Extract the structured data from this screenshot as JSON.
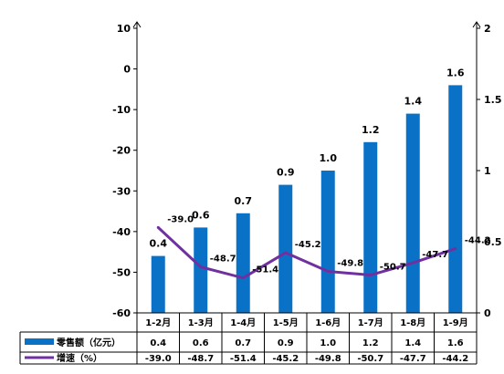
{
  "chart_data": {
    "type": "bar",
    "categories": [
      "1-2月",
      "1-3月",
      "1-4月",
      "1-5月",
      "1-6月",
      "1-7月",
      "1-8月",
      "1-9月"
    ],
    "series": [
      {
        "name": "零售额（亿元）",
        "type": "bar",
        "axis": "right",
        "color": "#0a72c6",
        "values": [
          0.4,
          0.6,
          0.7,
          0.9,
          1.0,
          1.2,
          1.4,
          1.6
        ],
        "labels": [
          "0.4",
          "0.6",
          "0.7",
          "0.9",
          "1.0",
          "1.2",
          "1.4",
          "1.6"
        ]
      },
      {
        "name": "增速（%）",
        "type": "line",
        "axis": "left",
        "color": "#7030a0",
        "values": [
          -39.0,
          -48.7,
          -51.4,
          -45.2,
          -49.8,
          -50.7,
          -47.7,
          -44.2
        ],
        "labels": [
          "-39.0",
          "-48.7",
          "-51.4",
          "-45.2",
          "-49.8",
          "-50.7",
          "-47.7",
          "-44.2"
        ]
      }
    ],
    "left_axis": {
      "ylim": [
        -60,
        10
      ],
      "ticks": [
        10,
        0,
        -10,
        -20,
        -30,
        -40,
        -50,
        -60
      ],
      "tick_labels": [
        "10",
        "0",
        "-10",
        "-20",
        "-30",
        "-40",
        "-50",
        "-60"
      ]
    },
    "right_axis": {
      "ylim": [
        0,
        2
      ],
      "ticks": [
        2,
        1.5,
        1,
        0.5,
        0
      ],
      "tick_labels": [
        "2",
        "1.5",
        "1",
        "0.5",
        "0"
      ]
    },
    "data_table": true,
    "grid": false
  }
}
